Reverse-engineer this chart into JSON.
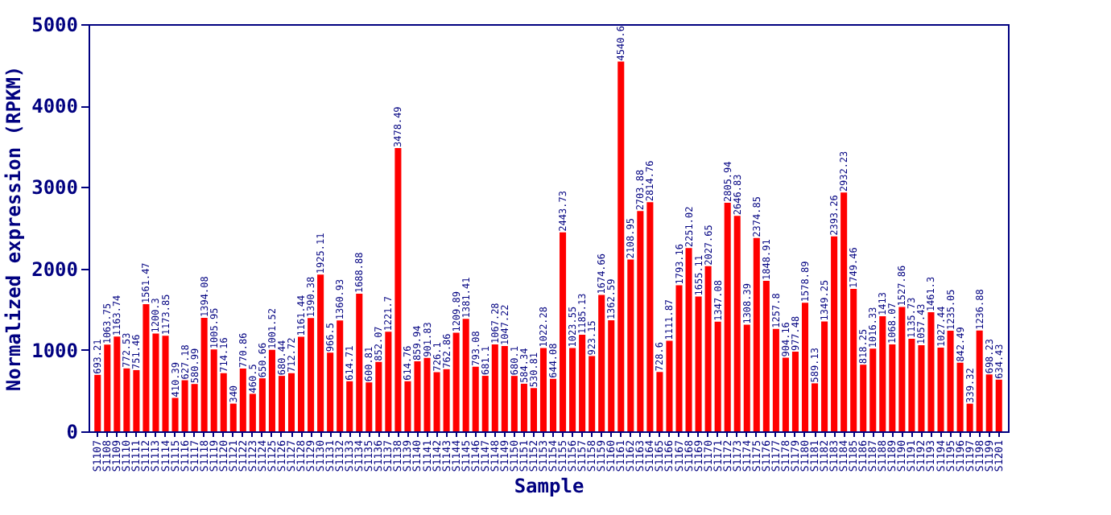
{
  "chart_data": {
    "type": "bar",
    "xlabel": "Sample",
    "ylabel": "Normalized expression (RPKM)",
    "categories": [
      "S1107",
      "S1108",
      "S1109",
      "S1110",
      "S1111",
      "S1112",
      "S1113",
      "S1114",
      "S1115",
      "S1116",
      "S1117",
      "S1118",
      "S1119",
      "S1120",
      "S1121",
      "S1122",
      "S1123",
      "S1124",
      "S1125",
      "S1126",
      "S1127",
      "S1128",
      "S1129",
      "S1130",
      "S1131",
      "S1132",
      "S1133",
      "S1134",
      "S1135",
      "S1136",
      "S1137",
      "S1138",
      "S1139",
      "S1140",
      "S1141",
      "S1142",
      "S1143",
      "S1144",
      "S1145",
      "S1146",
      "S1147",
      "S1148",
      "S1149",
      "S1150",
      "S1151",
      "S1152",
      "S1153",
      "S1154",
      "S1155",
      "S1156",
      "S1157",
      "S1158",
      "S1159",
      "S1160",
      "S1161",
      "S1162",
      "S1163",
      "S1164",
      "S1165",
      "S1166",
      "S1167",
      "S1168",
      "S1169",
      "S1170",
      "S1171",
      "S1172",
      "S1173",
      "S1174",
      "S1175",
      "S1176",
      "S1177",
      "S1178",
      "S1179",
      "S1180",
      "S1181",
      "S1182",
      "S1183",
      "S1184",
      "S1185",
      "S1186",
      "S1187",
      "S1188",
      "S1189",
      "S1190",
      "S1191",
      "S1192",
      "S1193",
      "S1194",
      "S1195",
      "S1196",
      "S1197",
      "S1198",
      "S1199",
      "S1201"
    ],
    "values": [
      693.21,
      1063.75,
      1163.74,
      772.53,
      751.46,
      1561.47,
      1200.3,
      1173.85,
      410.39,
      627.18,
      580.99,
      1394.08,
      1005.95,
      714.16,
      340,
      770.86,
      460.5,
      650.66,
      1001.52,
      680.44,
      712.72,
      1161.44,
      1390.38,
      1925.11,
      966.5,
      1360.93,
      614.71,
      1688.88,
      600.81,
      852.07,
      1221.7,
      3478.49,
      614.76,
      859.94,
      901.83,
      726.1,
      762.86,
      1209.89,
      1381.41,
      793.08,
      681.1,
      1067.28,
      1047.22,
      680.1,
      584.34,
      530.81,
      1022.28,
      644.08,
      2443.73,
      1023.55,
      1185.13,
      923.15,
      1674.66,
      1362.59,
      4540.6,
      2108.95,
      2703.88,
      2814.76,
      728.6,
      1111.87,
      1793.16,
      2251.02,
      1655.11,
      2027.65,
      1347.08,
      2805.94,
      2646.83,
      1308.39,
      2374.85,
      1848.91,
      1257.8,
      904.16,
      977.48,
      1578.89,
      589.13,
      1349.25,
      2393.26,
      2932.23,
      1749.46,
      818.25,
      1016.33,
      1413,
      1068.07,
      1527.86,
      1135.73,
      1057.43,
      1461.3,
      1027.44,
      1235.05,
      842.49,
      339.32,
      1236.88,
      698.23,
      634.43
    ],
    "color": "#ff0000",
    "ylim": [
      0,
      5000
    ],
    "yticks": [
      0,
      1000,
      2000,
      3000,
      4000,
      5000
    ],
    "data_labels": true
  }
}
